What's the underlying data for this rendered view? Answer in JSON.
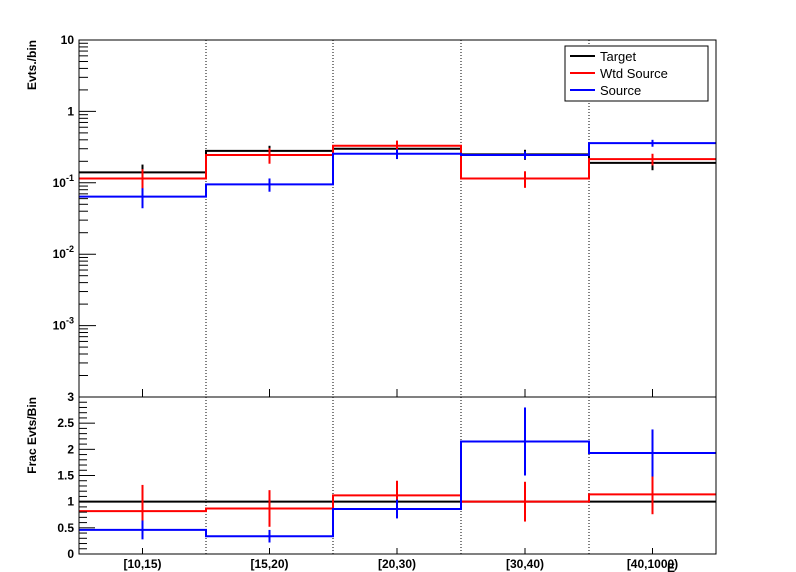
{
  "chart_data": [
    {
      "type": "step",
      "panel": "top",
      "ylabel": "Evts./bin",
      "yscale": "log",
      "ylim": [
        0.0001,
        10
      ],
      "categories": [
        "[10,15)",
        "[15,20)",
        "[20,30)",
        "[30,40)",
        "[40,1000)"
      ],
      "y_tick_labels": [
        {
          "value": 10,
          "base": "10",
          "exp": ""
        },
        {
          "value": 1,
          "base": "1",
          "exp": ""
        },
        {
          "value": 0.1,
          "base": "10",
          "exp": "-1"
        },
        {
          "value": 0.01,
          "base": "10",
          "exp": "-2"
        },
        {
          "value": 0.001,
          "base": "10",
          "exp": "-3"
        }
      ],
      "legend_position": "top-right",
      "series": [
        {
          "name": "Target",
          "color": "#000000",
          "values": [
            0.14,
            0.28,
            0.3,
            0.25,
            0.19
          ],
          "errors": [
            0.04,
            0.05,
            0.05,
            0.04,
            0.04
          ]
        },
        {
          "name": "Wtd Source",
          "color": "#ff0000",
          "values": [
            0.115,
            0.245,
            0.33,
            0.115,
            0.215
          ],
          "errors": [
            0.04,
            0.06,
            0.06,
            0.03,
            0.04
          ]
        },
        {
          "name": "Source",
          "color": "#0000ff",
          "values": [
            0.064,
            0.095,
            0.255,
            0.245,
            0.36
          ],
          "errors": [
            0.02,
            0.02,
            0.04,
            0.03,
            0.04
          ]
        }
      ]
    },
    {
      "type": "step",
      "panel": "bottom",
      "ylabel": "Frac Evts/Bin",
      "ylim": [
        0,
        3
      ],
      "y_tick_labels": [
        "0",
        "0.5",
        "1",
        "1.5",
        "2",
        "2.5",
        "3"
      ],
      "categories": [
        "[10,15)",
        "[15,20)",
        "[20,30)",
        "[30,40)",
        "[40,1000)"
      ],
      "xlabel_visible_fragment": "E",
      "series": [
        {
          "name": "Target",
          "color": "#000000",
          "values": [
            1,
            1,
            1,
            1,
            1
          ],
          "errors": [
            0,
            0,
            0,
            0,
            0
          ]
        },
        {
          "name": "Wtd Source",
          "color": "#ff0000",
          "values": [
            0.82,
            0.87,
            1.12,
            1.0,
            1.14
          ],
          "errors": [
            0.5,
            0.35,
            0.28,
            0.38,
            0.38
          ]
        },
        {
          "name": "Source",
          "color": "#0000ff",
          "values": [
            0.46,
            0.34,
            0.86,
            2.15,
            1.93
          ],
          "errors": [
            0.18,
            0.12,
            0.18,
            0.65,
            0.45
          ]
        }
      ]
    }
  ]
}
